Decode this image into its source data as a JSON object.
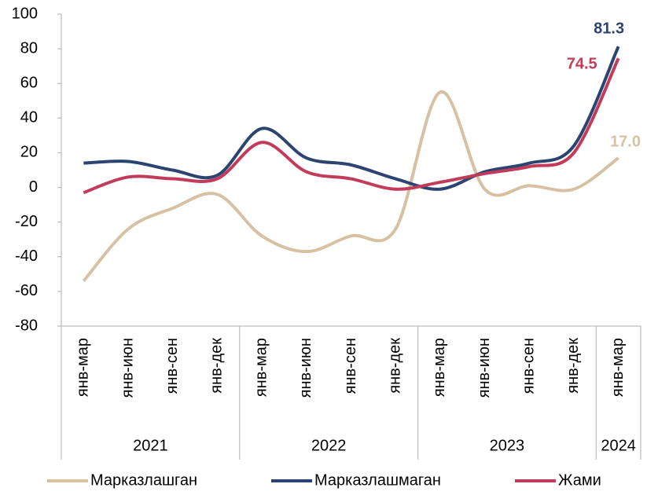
{
  "chart_data": {
    "type": "line",
    "categories": [
      "янв-мар",
      "янв-июн",
      "янв-сен",
      "янв-дек",
      "янв-мар",
      "янв-июн",
      "янв-сен",
      "янв-дек",
      "янв-мар",
      "янв-июн",
      "янв-сен",
      "янв-дек",
      "янв-мар"
    ],
    "x_groups": [
      {
        "label": "2021",
        "span": 4
      },
      {
        "label": "2022",
        "span": 4
      },
      {
        "label": "2023",
        "span": 4
      },
      {
        "label": "2024",
        "span": 1
      }
    ],
    "series": [
      {
        "name": "Марказлашган",
        "color": "#d6c2a2",
        "values": [
          -54,
          -24,
          -12,
          -4,
          -28,
          -37,
          -28,
          -24,
          55,
          -1,
          1,
          -1,
          17.0
        ],
        "value_labels": [
          null,
          null,
          null,
          null,
          null,
          null,
          null,
          null,
          null,
          null,
          null,
          null,
          "17.0"
        ]
      },
      {
        "name": "Марказлашмаган",
        "color": "#2b4470",
        "values": [
          14,
          15,
          10,
          7,
          34,
          17,
          13,
          5,
          -1,
          9,
          14,
          24,
          81.3
        ],
        "value_labels": [
          null,
          null,
          null,
          null,
          null,
          null,
          null,
          null,
          null,
          null,
          null,
          null,
          "81.3"
        ]
      },
      {
        "name": "Жами",
        "color": "#c33b5b",
        "values": [
          -3,
          6,
          5,
          5,
          26,
          9,
          5,
          -1,
          3,
          8,
          12,
          20,
          74.5
        ],
        "value_labels": [
          null,
          null,
          null,
          null,
          null,
          null,
          null,
          null,
          null,
          null,
          null,
          null,
          "74.5"
        ]
      }
    ],
    "ylim": [
      -80,
      100
    ],
    "yticks": [
      -80,
      -60,
      -40,
      -20,
      0,
      20,
      40,
      60,
      80,
      100
    ],
    "grid": false,
    "legend": "bottom"
  }
}
